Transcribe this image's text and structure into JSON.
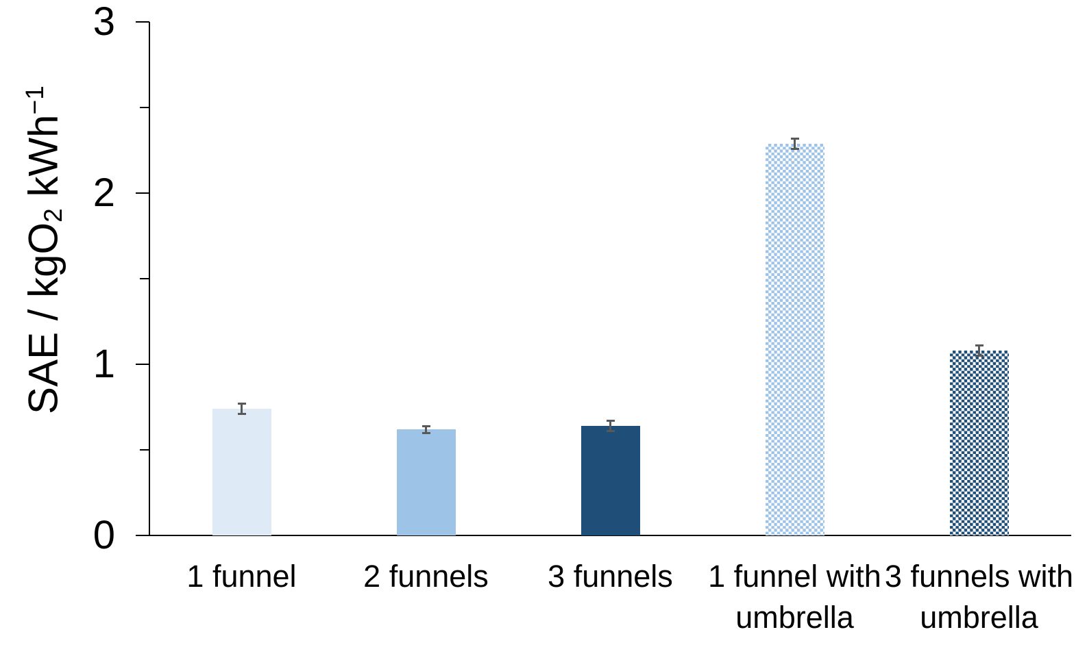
{
  "chart_data": {
    "type": "bar",
    "title": "",
    "xlabel": "",
    "ylabel": "SAE / kgO2 kWh-1",
    "ylabel_parts": {
      "base": "SAE / kgO",
      "sub": "2",
      "mid": " kWh",
      "sup": "−1"
    },
    "ylim": [
      0,
      3
    ],
    "grid": false,
    "legend": "none",
    "yticks": [
      {
        "label": "3",
        "value": 3
      },
      {
        "label": "2",
        "value": 2
      },
      {
        "label": "1",
        "value": 1
      },
      {
        "label": "0",
        "value": 0
      }
    ],
    "yticks_minor": [
      2.5,
      1.5,
      0.5
    ],
    "categories": [
      {
        "label": "1 funnel",
        "lines": [
          "1 funnel"
        ],
        "value": 0.74,
        "error": 0.03,
        "color": "#DEEBF7",
        "pattern": "solid"
      },
      {
        "label": "2 funnels",
        "lines": [
          "2 funnels"
        ],
        "value": 0.62,
        "error": 0.02,
        "color": "#9DC3E6",
        "pattern": "solid"
      },
      {
        "label": "3 funnels",
        "lines": [
          "3 funnels"
        ],
        "value": 0.64,
        "error": 0.03,
        "color": "#1F4E79",
        "pattern": "solid"
      },
      {
        "label": "1 funnel with umbrella",
        "lines": [
          "1 funnel with",
          "umbrella"
        ],
        "value": 2.29,
        "error": 0.03,
        "color": "#9DC3E6",
        "pattern": "checker"
      },
      {
        "label": "3 funnels with umbrella",
        "lines": [
          "3 funnels with",
          "umbrella"
        ],
        "value": 1.08,
        "error": 0.03,
        "color": "#1F4E79",
        "pattern": "checker"
      }
    ],
    "error_bar_color": "#595959",
    "axis_color": "#000000",
    "pattern_bg_color": "#FFFFFF"
  }
}
